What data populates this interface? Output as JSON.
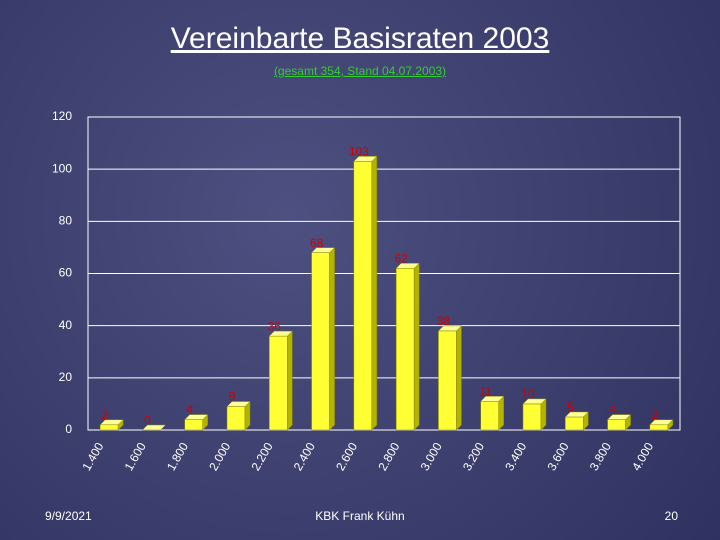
{
  "header": {
    "title": "Vereinbarte Basisraten 2003",
    "subtitle": "(gesamt 354, Stand 04.07.2003)"
  },
  "chart_data": {
    "type": "bar3d",
    "categories": [
      "1.400",
      "1.600",
      "1.800",
      "2.000",
      "2.200",
      "2.400",
      "2.600",
      "2.800",
      "3.000",
      "3.200",
      "3.400",
      "3.600",
      "3.800",
      "4.000"
    ],
    "values": [
      2,
      0,
      4,
      9,
      36,
      68,
      103,
      62,
      38,
      11,
      10,
      5,
      4,
      2
    ],
    "color": "#ffff33",
    "label_color": "#cc0000",
    "ylim": [
      0,
      120
    ],
    "yticks": [
      0,
      20,
      40,
      60,
      80,
      100,
      120
    ],
    "grid": true
  },
  "footer": {
    "date": "9/9/2021",
    "author": "KBK Frank Kühn",
    "page": "20"
  }
}
